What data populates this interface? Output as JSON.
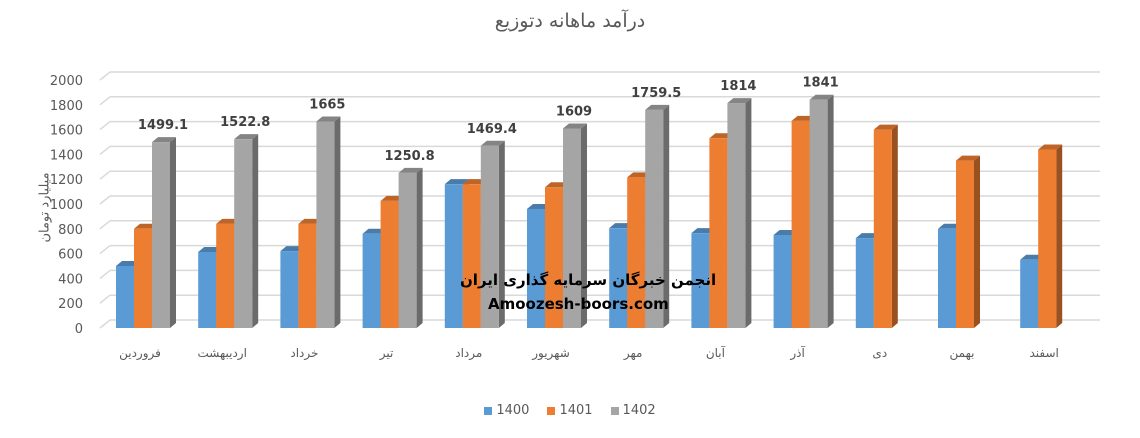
{
  "chart_data": {
    "type": "bar",
    "title": "درآمد ماهانه دتوزیع",
    "xlabel": "",
    "ylabel": "میلیارد تومان",
    "ylim": [
      0,
      2000
    ],
    "yticks": [
      0,
      200,
      400,
      600,
      800,
      1000,
      1200,
      1400,
      1600,
      1800,
      2000
    ],
    "grid": true,
    "legend_position": "bottom",
    "style": "3d-clustered-column",
    "categories": [
      "فروردین",
      "اردیبهشت",
      "خرداد",
      "تیر",
      "مرداد",
      "شهریور",
      "مهر",
      "آبان",
      "آذر",
      "دی",
      "بهمن",
      "اسفند"
    ],
    "series": [
      {
        "name": "1400",
        "color": "#5b9bd5",
        "values": [
          500,
          613,
          620,
          760,
          1160,
          960,
          805,
          765,
          750,
          725,
          800,
          550
        ]
      },
      {
        "name": "1401",
        "color": "#ed7d31",
        "values": [
          800,
          840,
          840,
          1025,
          1160,
          1135,
          1215,
          1530,
          1670,
          1600,
          1350,
          1440
        ]
      },
      {
        "name": "1402",
        "color": "#a5a5a5",
        "values": [
          1499.1,
          1522.8,
          1665,
          1250.8,
          1469.4,
          1609,
          1759.5,
          1814,
          1841,
          null,
          null,
          null
        ],
        "data_labels": [
          "1499.1",
          "1522.8",
          "1665",
          "1250.8",
          "1469.4",
          "1609",
          "1759.5",
          "1814",
          "1841"
        ]
      }
    ]
  },
  "watermark": {
    "line1": "انجمن خبرگان سرمایه گذاری ایران",
    "line2": "Amoozesh-boors.com"
  }
}
